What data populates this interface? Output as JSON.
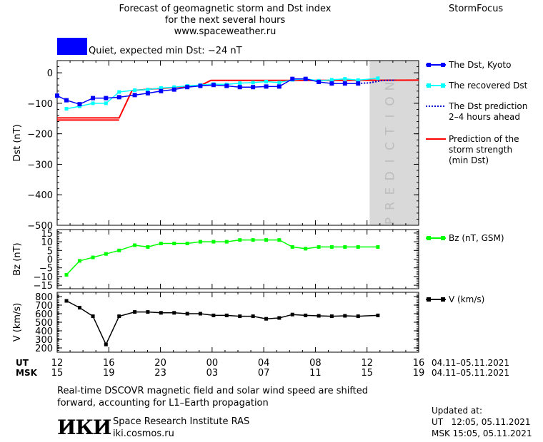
{
  "header": {
    "title_lines": [
      "Forecast of geomagnetic storm and Dst index",
      "for the next several hours",
      "www.spaceweather.ru"
    ],
    "brand": "StormFocus",
    "status_text": "Quiet, expected min Dst: −24 nT",
    "status_color": "#0000ff"
  },
  "legend": {
    "dst_kyoto": "The Dst, Kyoto",
    "dst_recovered": "The recovered Dst",
    "dst_prediction": [
      "The Dst prediction",
      "2–4 hours ahead"
    ],
    "storm_strength": [
      "Prediction of the",
      "storm strength",
      "(min Dst)"
    ],
    "bz": "Bz (nT, GSM)",
    "v": "V (km/s)"
  },
  "prediction_label": "PREDICTION",
  "time_axis": {
    "ut_label": "UT",
    "msk_label": "MSK",
    "ut_ticks": [
      "12",
      "16",
      "20",
      "00",
      "04",
      "08",
      "12",
      "16"
    ],
    "msk_ticks": [
      "15",
      "19",
      "23",
      "03",
      "07",
      "11",
      "15",
      "19"
    ],
    "date_range_ut": "04.11–05.11.2021",
    "date_range_msk": "04.11–05.11.2021"
  },
  "footer": {
    "note_lines": [
      "Real-time DSCOVR magnetic field and solar wind speed are shifted",
      "forward, accounting for L1–Earth propagation"
    ],
    "logo_text": "ИКИ",
    "institute": "Space Research Institute RAS",
    "site": "iki.cosmos.ru",
    "updated_label": "Updated at:",
    "updated_ut": "UT   12:05, 05.11.2021",
    "updated_msk": "MSK 15:05, 05.11.2021"
  },
  "colors": {
    "dst_kyoto": "#0000ff",
    "dst_recovered": "#00ffff",
    "dst_prediction": "#0000cc",
    "storm_strength": "#ff0000",
    "bz": "#00ff00",
    "v": "#000000",
    "prediction_zone": "#d9d9d9"
  },
  "chart_data": [
    {
      "type": "line",
      "ylabel": "Dst (nT)",
      "xlim_hours": [
        0,
        28
      ],
      "ylim": [
        -500,
        40
      ],
      "yticks": [
        0,
        -100,
        -200,
        -300,
        -400,
        -500
      ],
      "ytick_labels": [
        "0",
        "−100",
        "−200",
        "−300",
        "−400",
        "−500"
      ],
      "prediction_zone_hours": [
        24.2,
        28
      ],
      "series": [
        {
          "name": "The Dst, Kyoto",
          "x": [
            0,
            0.72,
            1.74,
            2.77,
            3.78,
            4.8,
            6.01,
            7.02,
            8.04,
            9.06,
            10.08,
            11.09,
            12.11,
            13.13,
            14.15,
            15.17,
            16.19,
            17.2,
            18.22,
            19.24,
            20.26,
            21.27,
            22.29,
            23.31
          ],
          "y": [
            -75,
            -90,
            -103,
            -83,
            -83,
            -80,
            -73,
            -67,
            -60,
            -55,
            -47,
            -43,
            -40,
            -43,
            -47,
            -47,
            -45,
            -45,
            -20,
            -20,
            -30,
            -35,
            -35,
            -35
          ]
        },
        {
          "name": "The recovered Dst",
          "x": [
            0.72,
            1.74,
            2.77,
            3.78,
            4.8,
            6.01,
            7.02,
            8.04,
            9.06,
            10.08,
            11.09,
            12.11,
            13.13,
            14.15,
            15.17,
            16.19,
            17.2,
            18.22,
            19.24,
            20.26,
            21.27,
            22.29,
            23.31,
            24.84
          ],
          "y": [
            -118,
            -110,
            -100,
            -100,
            -63,
            -57,
            -55,
            -50,
            -47,
            -43,
            -40,
            -37,
            -38,
            -34,
            -32,
            -29,
            -32,
            -23,
            -20,
            -26,
            -23,
            -20,
            -24,
            -18
          ]
        },
        {
          "name": "The Dst prediction",
          "x": [
            23.31,
            24.2,
            25.2,
            26.2
          ],
          "y": [
            -35,
            -33,
            -25,
            -24
          ]
        },
        {
          "name": "Prediction of the storm strength",
          "x": [
            0,
            4.8,
            5.8,
            11.1,
            11.9,
            17.9,
            18.7,
            28
          ],
          "y": [
            -148,
            -148,
            -58,
            -42,
            -25,
            -25,
            -25,
            -24
          ]
        },
        {
          "name": "Prediction of the storm strength",
          "x": [
            0,
            4.8
          ],
          "y": [
            -155,
            -155
          ]
        }
      ]
    },
    {
      "type": "line",
      "ylabel": "Bz (nT)",
      "ylim": [
        -17,
        17
      ],
      "yticks": [
        15,
        10,
        5,
        0,
        -5,
        -10,
        -15
      ],
      "ytick_labels": [
        "15",
        "10",
        "5",
        "0",
        "−5",
        "−10",
        "−15"
      ],
      "series": [
        {
          "name": "Bz (nT, GSM)",
          "x": [
            0.72,
            1.74,
            2.77,
            3.78,
            4.8,
            6.01,
            7.02,
            8.04,
            9.06,
            10.08,
            11.09,
            12.11,
            13.13,
            14.15,
            15.17,
            16.19,
            17.2,
            18.22,
            19.24,
            20.26,
            21.27,
            22.29,
            23.31,
            24.84
          ],
          "y": [
            -9,
            -1,
            1,
            3,
            5,
            8,
            7,
            9,
            9,
            9,
            10,
            10,
            10,
            11,
            11,
            11,
            11,
            7,
            6,
            7,
            7,
            7,
            7,
            7
          ]
        }
      ]
    },
    {
      "type": "line",
      "ylabel": "V (km/s)",
      "ylim": [
        150,
        850
      ],
      "yticks": [
        800,
        700,
        600,
        500,
        400,
        300,
        200
      ],
      "ytick_labels": [
        "800",
        "700",
        "600",
        "500",
        "400",
        "300",
        "200"
      ],
      "series": [
        {
          "name": "V (km/s)",
          "x": [
            0.72,
            1.74,
            2.77,
            3.78,
            4.8,
            6.01,
            7.02,
            8.04,
            9.06,
            10.08,
            11.09,
            12.11,
            13.13,
            14.15,
            15.17,
            16.19,
            17.2,
            18.22,
            19.24,
            20.26,
            21.27,
            22.29,
            23.31,
            24.84
          ],
          "y": [
            750,
            670,
            570,
            240,
            570,
            620,
            620,
            610,
            610,
            600,
            600,
            580,
            580,
            570,
            570,
            540,
            550,
            590,
            580,
            575,
            570,
            575,
            570,
            580
          ]
        }
      ]
    }
  ]
}
